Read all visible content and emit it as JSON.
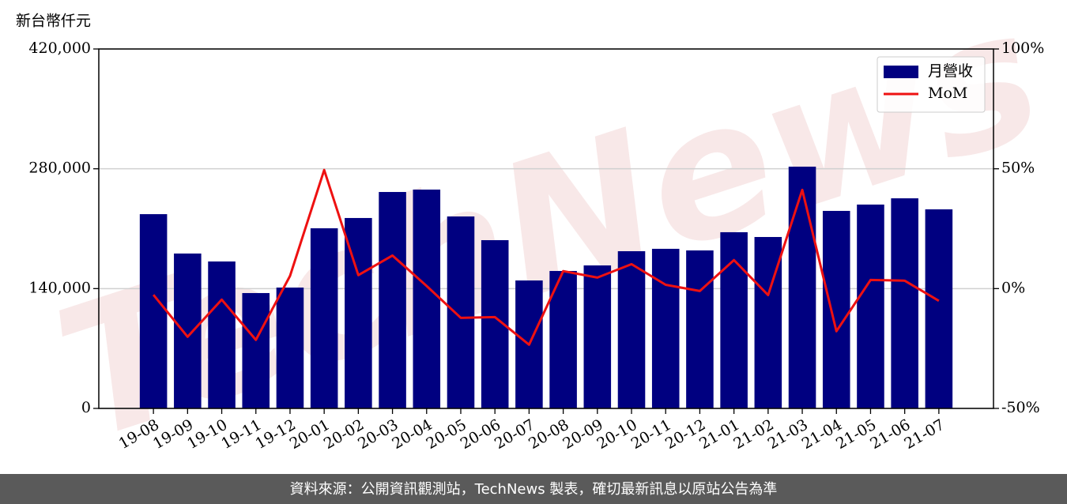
{
  "chart_data": {
    "type": "bar_line",
    "y_unit_label": "新台幣仟元",
    "watermark": "TechNews",
    "footer": "資料來源：公開資訊觀測站，TechNews 製表，確切最新訊息以原站公告為準",
    "categories": [
      "19-08",
      "19-09",
      "19-10",
      "19-11",
      "19-12",
      "20-01",
      "20-02",
      "20-03",
      "20-04",
      "20-05",
      "20-06",
      "20-07",
      "20-08",
      "20-09",
      "20-10",
      "20-11",
      "20-12",
      "21-01",
      "21-02",
      "21-03",
      "21-04",
      "21-05",
      "21-06",
      "21-07"
    ],
    "series": [
      {
        "name": "月營收",
        "type": "bar",
        "color": "#000080",
        "axis": "y",
        "values": [
          227000,
          181000,
          171700,
          134800,
          141200,
          210500,
          222500,
          252900,
          255700,
          224300,
          196600,
          149500,
          160600,
          167100,
          183700,
          186500,
          184600,
          205900,
          200300,
          282500,
          230800,
          238200,
          245500,
          232600
        ]
      },
      {
        "name": "MoM",
        "type": "line",
        "color": "#ee1111",
        "axis": "y2",
        "values": [
          -2.6,
          -20.1,
          -4.6,
          -21.4,
          5.3,
          49.5,
          5.6,
          13.8,
          1.1,
          -12.2,
          -11.9,
          -23.4,
          7.3,
          4.6,
          10.2,
          1.6,
          -1.0,
          11.9,
          -2.7,
          41.2,
          -17.8,
          3.6,
          3.3,
          -5.1
        ]
      }
    ],
    "ylim": [
      0,
      420000
    ],
    "yticks": [
      0,
      {
        "value": 140000,
        "label": "140,000"
      },
      {
        "value": 280000,
        "label": "280,000"
      },
      {
        "value": 420000,
        "label": "420,000"
      }
    ],
    "y2lim": [
      -50,
      100
    ],
    "y2ticks": [
      {
        "value": -50,
        "label": "-50%"
      },
      {
        "value": 0,
        "label": "0%"
      },
      {
        "value": 50,
        "label": "50%"
      },
      {
        "value": 100,
        "label": "100%"
      }
    ],
    "grid": true,
    "legend": "upper right"
  }
}
